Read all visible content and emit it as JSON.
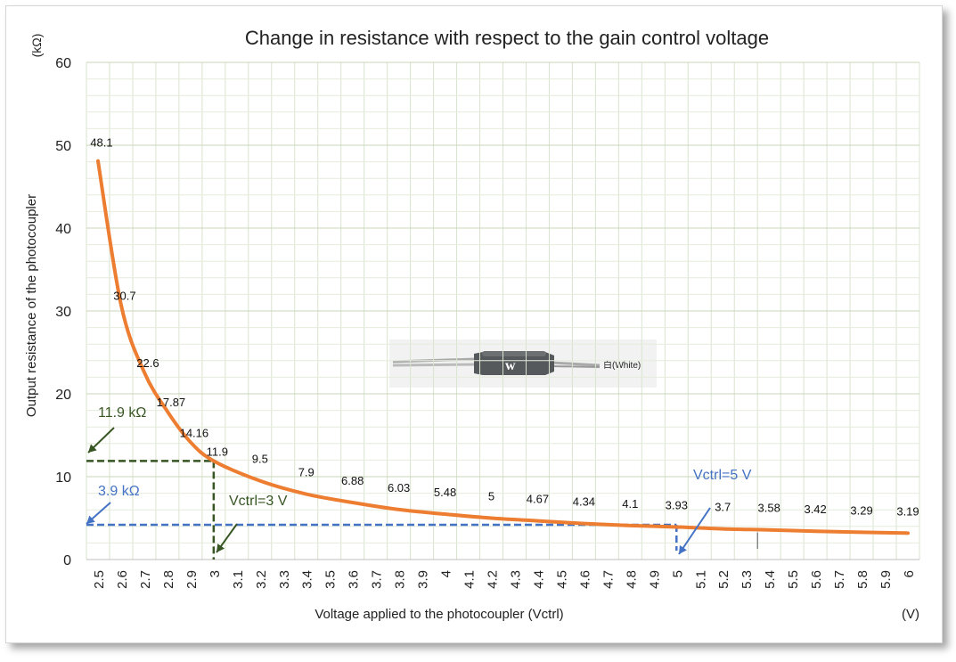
{
  "chart_data": {
    "type": "line",
    "title": "Change in resistance with respect to the gain control voltage",
    "xlabel": "Voltage applied to the photocoupler (Vctrl)",
    "ylabel": "Output resistance of the photocoupler",
    "xunit": "(V)",
    "yunit": "(kΩ)",
    "ylim": [
      0,
      60
    ],
    "yticks": [
      0,
      10,
      20,
      30,
      40,
      50,
      60
    ],
    "xticks": [
      "2.5",
      "2.6",
      "2.7",
      "2.8",
      "2.9",
      "3",
      "3.1",
      "3.2",
      "3.3",
      "3.4",
      "3.5",
      "3.6",
      "3.7",
      "3.8",
      "3.9",
      "4",
      "4.1",
      "4.2",
      "4.3",
      "4.4",
      "4.5",
      "4.6",
      "4.7",
      "4.8",
      "4.9",
      "5",
      "5.1",
      "5.2",
      "5.3",
      "5.4",
      "5.5",
      "5.6",
      "5.7",
      "5.8",
      "5.9",
      "6"
    ],
    "grid": true,
    "series": [
      {
        "color": "#ed7d31",
        "x": [
          2.5,
          2.6,
          2.7,
          2.8,
          2.9,
          3.0,
          3.2,
          3.4,
          3.6,
          3.8,
          4.0,
          4.2,
          4.4,
          4.6,
          4.8,
          5.0,
          5.2,
          5.4,
          5.6,
          5.8,
          6.0
        ],
        "values": [
          48.1,
          30.7,
          22.6,
          17.87,
          14.16,
          11.9,
          9.5,
          7.9,
          6.88,
          6.03,
          5.48,
          5,
          4.67,
          4.34,
          4.1,
          3.93,
          3.7,
          3.58,
          3.42,
          3.29,
          3.19
        ],
        "labels": [
          "48.1",
          "30.7",
          "22.6",
          "17.87",
          "14.16",
          "11.9",
          "9.5",
          "7.9",
          "6.88",
          "6.03",
          "5.48",
          "5",
          "4.67",
          "4.34",
          "4.1",
          "3.93",
          "3.7",
          "3.58",
          "3.42",
          "3.29",
          "3.19"
        ]
      }
    ],
    "annotations": [
      {
        "text": "11.9 kΩ",
        "x": 3.0,
        "y": 11.9,
        "color": "#375623"
      },
      {
        "text": "Vctrl=3 V",
        "x": 3.0,
        "y": 0,
        "color": "#375623"
      },
      {
        "text": "3.9 kΩ",
        "x": 5.0,
        "y": 3.9,
        "color": "#4472c4"
      },
      {
        "text": "Vctrl=5 V",
        "x": 5.0,
        "y": 0,
        "color": "#4472c4"
      }
    ],
    "inset_label": "白(White)"
  }
}
